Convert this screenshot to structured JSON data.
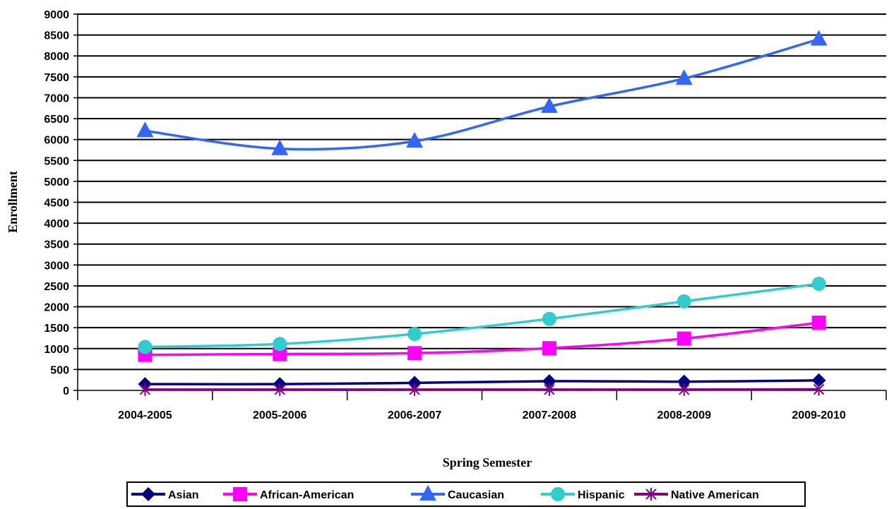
{
  "chart_data": {
    "type": "line",
    "title": "",
    "xlabel": "Spring Semester",
    "ylabel": "Enrollment",
    "ylim": [
      0,
      9000
    ],
    "y_step": 500,
    "grid": true,
    "legend_position": "bottom",
    "categories": [
      "2004-2005",
      "2005-2006",
      "2006-2007",
      "2007-2008",
      "2008-2009",
      "2009-2010"
    ],
    "series": [
      {
        "name": "Asian",
        "color": "#000080",
        "marker": "diamond",
        "values": [
          150,
          150,
          180,
          220,
          210,
          240
        ]
      },
      {
        "name": "African-American",
        "color": "#FF00FF",
        "marker": "square",
        "values": [
          850,
          870,
          890,
          1010,
          1240,
          1620
        ]
      },
      {
        "name": "Caucasian",
        "color": "#3366FF",
        "marker": "triangle",
        "values": [
          6210,
          5780,
          5960,
          6790,
          7460,
          8400
        ]
      },
      {
        "name": "Hispanic",
        "color": "#33CCCC",
        "marker": "circle",
        "values": [
          1040,
          1110,
          1350,
          1710,
          2130,
          2550
        ]
      },
      {
        "name": "Native American",
        "color": "#800080",
        "marker": "star",
        "values": [
          20,
          20,
          20,
          20,
          20,
          25
        ]
      }
    ]
  }
}
